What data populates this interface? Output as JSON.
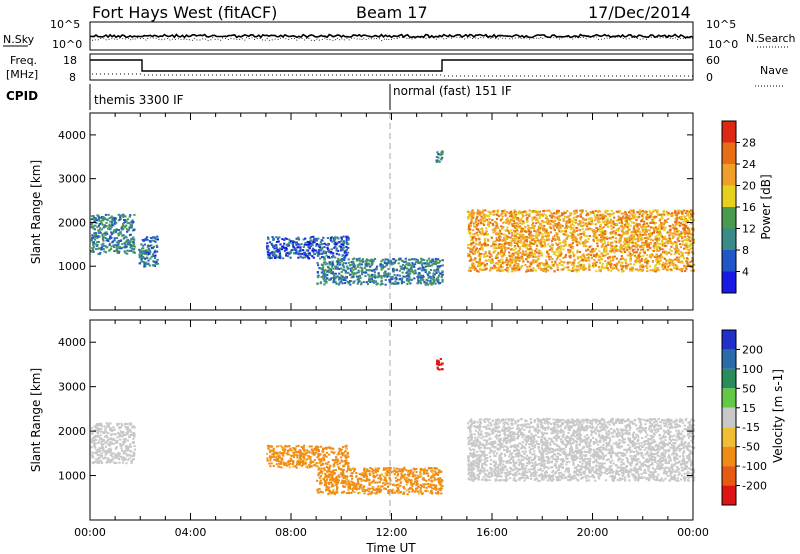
{
  "header": {
    "station": "Fort Hays West (fitACF)",
    "beam": "Beam 17",
    "date": "17/Dec/2014"
  },
  "noise_panel": {
    "left_label": "N.Sky",
    "left_ticks": [
      "10^5",
      "10^0"
    ],
    "right_label": "N.Search",
    "right_ticks": [
      "10^5",
      "10^0"
    ]
  },
  "freq_panel": {
    "left_label_1": "Freq.",
    "left_label_2": "[MHz]",
    "left_ticks": [
      "18",
      "8"
    ],
    "right_label": "Nave",
    "right_ticks": [
      "60",
      "0"
    ]
  },
  "cpid_panel": {
    "label": "CPID",
    "modes": [
      "themis 3300 IF",
      "normal (fast) 151 IF"
    ]
  },
  "colors": {
    "power_scale": [
      "#1919e6",
      "#2255c8",
      "#3a8a8a",
      "#4a9a50",
      "#e6d21e",
      "#f0a028",
      "#e66e14",
      "#dc2814"
    ],
    "velocity_scale": [
      "#2030c8",
      "#2a6aa8",
      "#2a8c5a",
      "#64c846",
      "#c8c8c8",
      "#f0be32",
      "#f08c14",
      "#e65a14",
      "#dc1414"
    ]
  },
  "chart_data": [
    {
      "type": "heatmap",
      "title": "Power",
      "ylabel": "Slant Range [km]",
      "xlim": [
        "00:00",
        "00:00"
      ],
      "ylim": [
        0,
        4500
      ],
      "yticks": [
        "4000",
        "3000",
        "2000",
        "1000"
      ],
      "xticks": [],
      "colorbar": {
        "label": "Power [dB]",
        "tick_labels": [
          "28",
          "24",
          "20",
          "16",
          "12",
          "8",
          "4"
        ],
        "range": [
          0,
          32
        ]
      },
      "regions": [
        {
          "t_start": "00:00",
          "t_end": "01:45",
          "range_km": [
            1300,
            2200
          ],
          "value_db": 10
        },
        {
          "t_start": "01:55",
          "t_end": "02:40",
          "range_km": [
            1000,
            1700
          ],
          "value_db": 8
        },
        {
          "t_start": "07:00",
          "t_end": "10:15",
          "range_km": [
            1200,
            1700
          ],
          "value_db": 6
        },
        {
          "t_start": "09:00",
          "t_end": "14:00",
          "range_km": [
            600,
            1200
          ],
          "value_db": 10
        },
        {
          "t_start": "13:45",
          "t_end": "14:00",
          "range_km": [
            3400,
            3650
          ],
          "value_db": 12
        },
        {
          "t_start": "15:00",
          "t_end": "24:00",
          "range_km": [
            900,
            2300
          ],
          "value_db": 22
        }
      ]
    },
    {
      "type": "heatmap",
      "title": "Velocity",
      "ylabel": "Slant Range [km]",
      "xlabel": "Time UT",
      "xlim": [
        "00:00",
        "00:00"
      ],
      "ylim": [
        0,
        4500
      ],
      "yticks": [
        "4000",
        "3000",
        "2000",
        "1000"
      ],
      "xticks": [
        "00:00",
        "04:00",
        "08:00",
        "12:00",
        "16:00",
        "20:00",
        "00:00"
      ],
      "colorbar": {
        "label": "Velocity [m s-1]",
        "tick_labels": [
          "200",
          "100",
          "50",
          "15",
          "-15",
          "-50",
          "-100",
          "-200"
        ],
        "range": [
          -250,
          250
        ]
      },
      "regions": [
        {
          "t_start": "00:00",
          "t_end": "01:45",
          "range_km": [
            1300,
            2200
          ],
          "value_ms": 0
        },
        {
          "t_start": "07:00",
          "t_end": "10:15",
          "range_km": [
            1200,
            1700
          ],
          "value_ms": -40
        },
        {
          "t_start": "09:00",
          "t_end": "14:00",
          "range_km": [
            600,
            1200
          ],
          "value_ms": -40
        },
        {
          "t_start": "13:45",
          "t_end": "14:00",
          "range_km": [
            3400,
            3650
          ],
          "value_ms": -200
        },
        {
          "t_start": "15:00",
          "t_end": "24:00",
          "range_km": [
            900,
            2300
          ],
          "value_ms": 0
        }
      ]
    }
  ]
}
